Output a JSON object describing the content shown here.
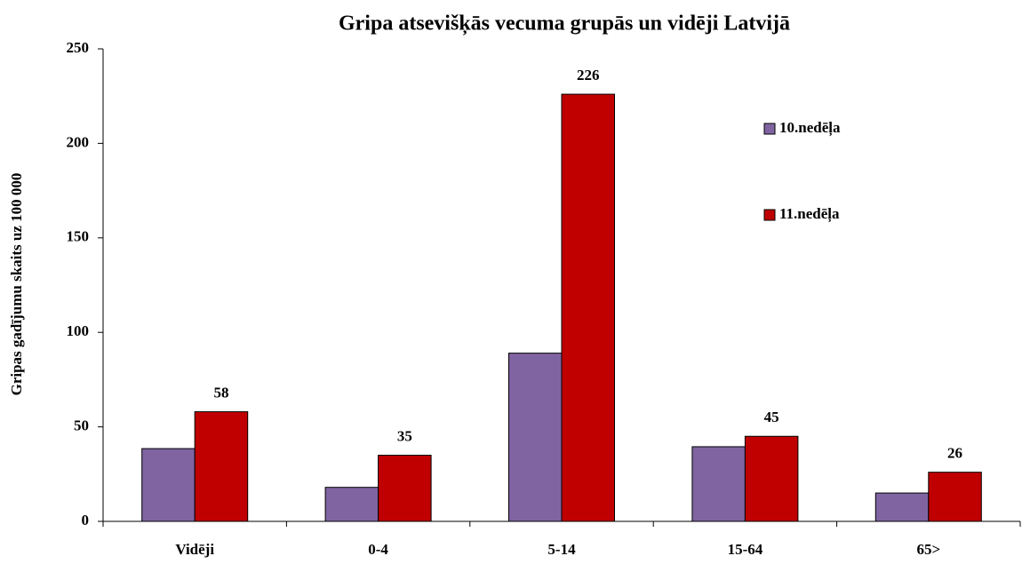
{
  "chart_data": {
    "type": "bar",
    "title": "Gripa atsevišķās vecuma grupās un vidēji Latvijā",
    "y_label": "Gripas gadījumu skaits uz 100 000",
    "categories": [
      "Vidēji",
      "0-4",
      "5-14",
      "15-64",
      "65>"
    ],
    "series": [
      {
        "name": "10.nedēļa",
        "color": "#8064a2",
        "values": [
          38.5,
          18,
          89,
          39.5,
          15
        ],
        "data_labels": false
      },
      {
        "name": "11.nedēļa",
        "color": "#c00000",
        "values": [
          58,
          35,
          226,
          45,
          26
        ],
        "data_labels": true
      }
    ],
    "ylim": [
      0,
      250
    ],
    "yticks": [
      0,
      50,
      100,
      150,
      200,
      250
    ],
    "grid": false
  }
}
